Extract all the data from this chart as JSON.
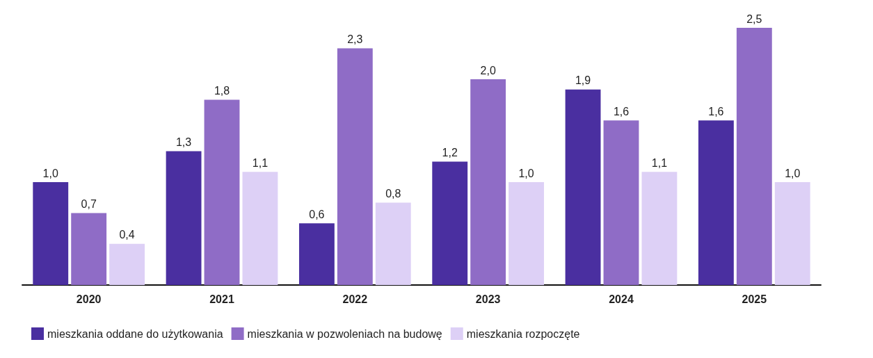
{
  "chart_data": {
    "type": "bar",
    "categories": [
      "2020",
      "2021",
      "2022",
      "2023",
      "2024",
      "2025"
    ],
    "series": [
      {
        "name": "mieszkania oddane do użytkowania",
        "color": "#4a2fa0",
        "values": [
          1.0,
          1.3,
          0.6,
          1.2,
          1.9,
          1.6
        ],
        "value_labels": [
          "1,0",
          "1,3",
          "0,6",
          "1,2",
          "1,9",
          "1,6"
        ]
      },
      {
        "name": "mieszkania w pozwoleniach na budowę",
        "color": "#8f6cc6",
        "values": [
          0.7,
          1.8,
          2.3,
          2.0,
          1.6,
          2.5
        ],
        "value_labels": [
          "0,7",
          "1,8",
          "2,3",
          "2,0",
          "1,6",
          "2,5"
        ]
      },
      {
        "name": "mieszkania rozpoczęte",
        "color": "#ddd0f6",
        "values": [
          0.4,
          1.1,
          0.8,
          1.0,
          1.1,
          1.0
        ],
        "value_labels": [
          "0,4",
          "1,1",
          "0,8",
          "1,0",
          "1,1",
          "1,0"
        ]
      }
    ],
    "legend": "bottom left"
  }
}
